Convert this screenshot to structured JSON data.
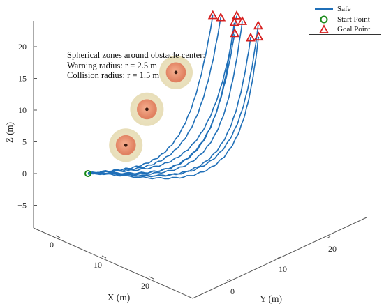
{
  "chart_data": {
    "type": "line3d",
    "xlabel": "X (m)",
    "ylabel": "Y (m)",
    "zlabel": "Z (m)",
    "x_ticks": [
      "0",
      "10",
      "20"
    ],
    "y_ticks": [
      "0",
      "10",
      "20"
    ],
    "z_ticks": [
      "20",
      "15",
      "10",
      "5",
      "0",
      "−5"
    ],
    "zlim": [
      -8,
      24
    ],
    "legend": {
      "position": "top-right",
      "entries": [
        {
          "label": "Safe",
          "symbol": "line",
          "color": "#1f6fb8"
        },
        {
          "label": "Start Point",
          "symbol": "circle",
          "color": "#1a8a1a"
        },
        {
          "label": "Goal Point",
          "symbol": "triangle",
          "color": "#d62020"
        }
      ]
    },
    "annotation": {
      "lines": [
        "Spherical zones around obstacle center:",
        "Warning radius: r = 2.5 m",
        "Collision radius: r = 1.5 m"
      ]
    },
    "start_point": {
      "x": 0,
      "y": 0,
      "z": 0
    },
    "goal_points": [
      {
        "x": 4,
        "y": 22,
        "z": 18
      },
      {
        "x": 5,
        "y": 23,
        "z": 17.5
      },
      {
        "x": 7,
        "y": 25,
        "z": 17.5
      },
      {
        "x": 10,
        "y": 23,
        "z": 16
      },
      {
        "x": 8,
        "y": 24,
        "z": 17
      },
      {
        "x": 9,
        "y": 25,
        "z": 17
      },
      {
        "x": 12,
        "y": 25,
        "z": 15
      },
      {
        "x": 11,
        "y": 27,
        "z": 16
      },
      {
        "x": 13,
        "y": 26,
        "z": 15
      }
    ],
    "obstacles": [
      {
        "x": 8,
        "y": 3,
        "z": 5,
        "warning_radius": 2.5,
        "collision_radius": 1.5
      },
      {
        "x": 10,
        "y": 6,
        "z": 10,
        "warning_radius": 2.5,
        "collision_radius": 1.5
      },
      {
        "x": 13,
        "y": 10,
        "z": 15,
        "warning_radius": 2.5,
        "collision_radius": 1.5
      }
    ],
    "trajectories": 9
  }
}
